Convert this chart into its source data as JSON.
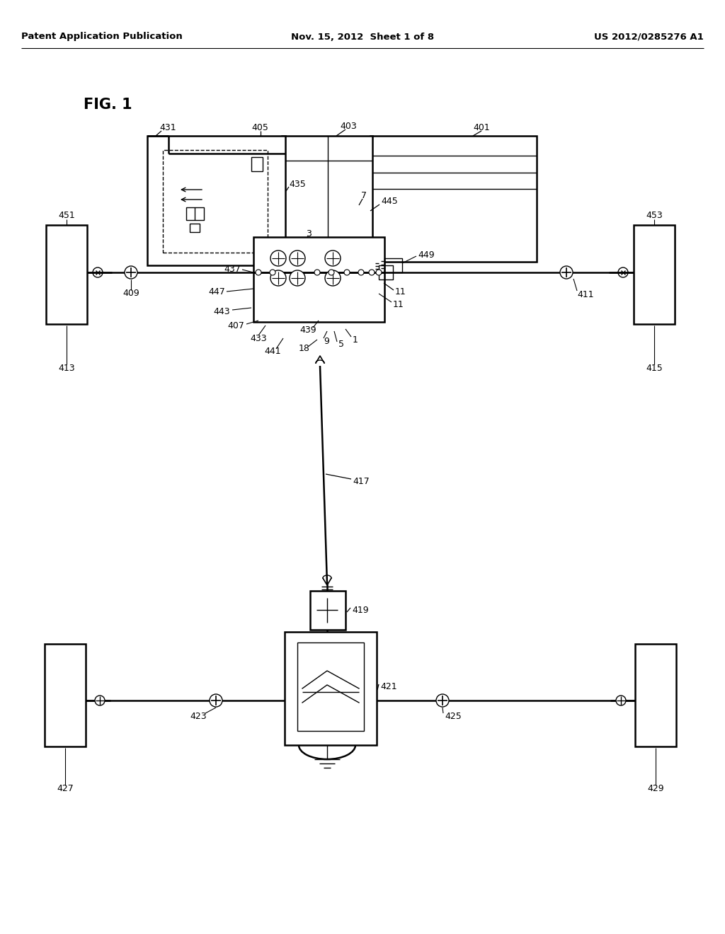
{
  "background_color": "#ffffff",
  "header_left": "Patent Application Publication",
  "header_mid": "Nov. 15, 2012  Sheet 1 of 8",
  "header_right": "US 2012/0285276 A1",
  "fig_label": "FIG. 1",
  "line_color": "#000000",
  "lw": 1.8,
  "thin_lw": 1.0,
  "label_fs": 9
}
